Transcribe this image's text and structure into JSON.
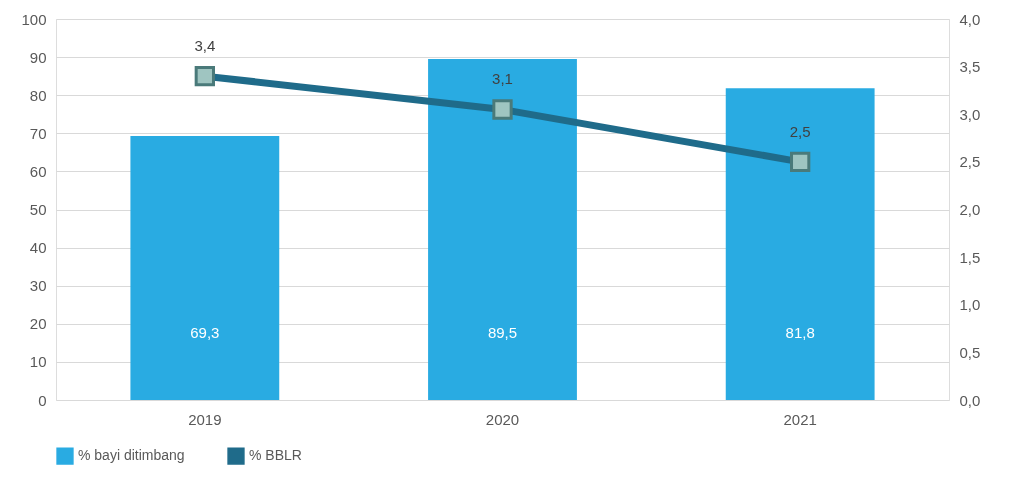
{
  "chart_data": {
    "type": "bar",
    "categories": [
      "2019",
      "2020",
      "2021"
    ],
    "series": [
      {
        "name": "% bayi ditimbang",
        "color": "#29abe2",
        "values": [
          69.3,
          89.5,
          81.8
        ],
        "value_labels": [
          "69,3",
          "89,5",
          "81,8"
        ]
      },
      {
        "name": "% BBLR",
        "type": "line",
        "axis": "y2",
        "color": "#1f6b8a",
        "marker": "square",
        "values": [
          3.4,
          3.05,
          2.5
        ],
        "value_labels": [
          "3,4",
          "3,1",
          "2,5"
        ]
      }
    ],
    "ylim": [
      0,
      100
    ],
    "yticks": [
      0,
      10,
      20,
      30,
      40,
      50,
      60,
      70,
      80,
      90,
      100
    ],
    "y2lim": [
      0,
      4
    ],
    "y2ticks": [
      {
        "value": 0,
        "label": "0,0"
      },
      {
        "value": 0.5,
        "label": "0,5"
      },
      {
        "value": 1,
        "label": "1,0"
      },
      {
        "value": 1.5,
        "label": "1,5"
      },
      {
        "value": 2,
        "label": "2,0"
      },
      {
        "value": 2.5,
        "label": "2,5"
      },
      {
        "value": 3,
        "label": "3,0"
      },
      {
        "value": 3.5,
        "label": "3,5"
      },
      {
        "value": 4,
        "label": "4,0"
      }
    ],
    "grid": "y",
    "legend": "bottom"
  }
}
